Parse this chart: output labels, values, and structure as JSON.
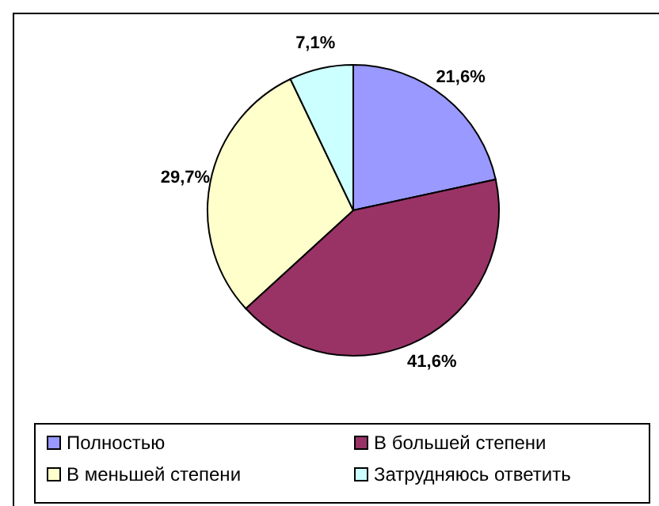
{
  "chart_data": {
    "type": "pie",
    "categories": [
      "Полностью",
      "В большей степени",
      "В меньшей степени",
      "Затрудняюсь ответить"
    ],
    "values": [
      21.6,
      41.6,
      29.7,
      7.1
    ],
    "colors": [
      "#9999ff",
      "#993366",
      "#ffffcc",
      "#ccffff"
    ],
    "value_labels": [
      "21,6%",
      "41,6%",
      "29,7%",
      "7,1%"
    ],
    "legend": "bottom"
  }
}
